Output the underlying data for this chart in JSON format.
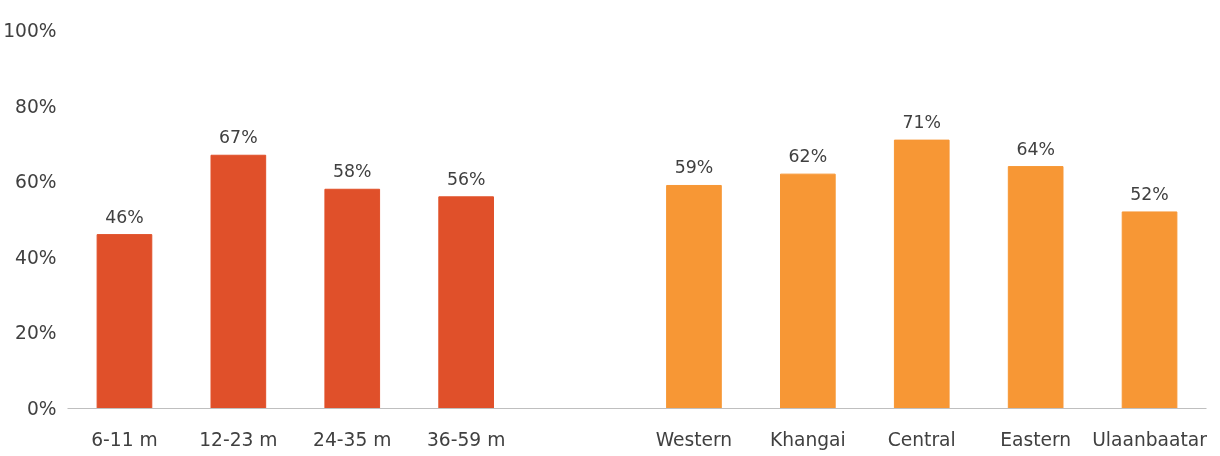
{
  "chart_data": {
    "type": "bar",
    "categories": [
      "6-11 m",
      "12-23 m",
      "24-35 m",
      "36-59 m",
      null,
      "Western",
      "Khangai",
      "Central",
      "Eastern",
      "Ulaanbaatar"
    ],
    "values": [
      46,
      67,
      58,
      56,
      null,
      59,
      62,
      71,
      64,
      52
    ],
    "colors": [
      "#e0502a",
      "#e0502a",
      "#e0502a",
      "#e0502a",
      null,
      "#f79735",
      "#f79735",
      "#f79735",
      "#f79735",
      "#f79735"
    ],
    "value_labels": [
      "46%",
      "67%",
      "58%",
      "56%",
      null,
      "59%",
      "62%",
      "71%",
      "64%",
      "52%"
    ],
    "ylim": [
      0,
      100
    ],
    "yticks": [
      {
        "value": 0,
        "label": "0%"
      },
      {
        "value": 20,
        "label": "20%"
      },
      {
        "value": 40,
        "label": "40%"
      },
      {
        "value": 60,
        "label": "60%"
      },
      {
        "value": 80,
        "label": "80%"
      },
      {
        "value": 100,
        "label": "100%"
      }
    ],
    "grid": false
  }
}
